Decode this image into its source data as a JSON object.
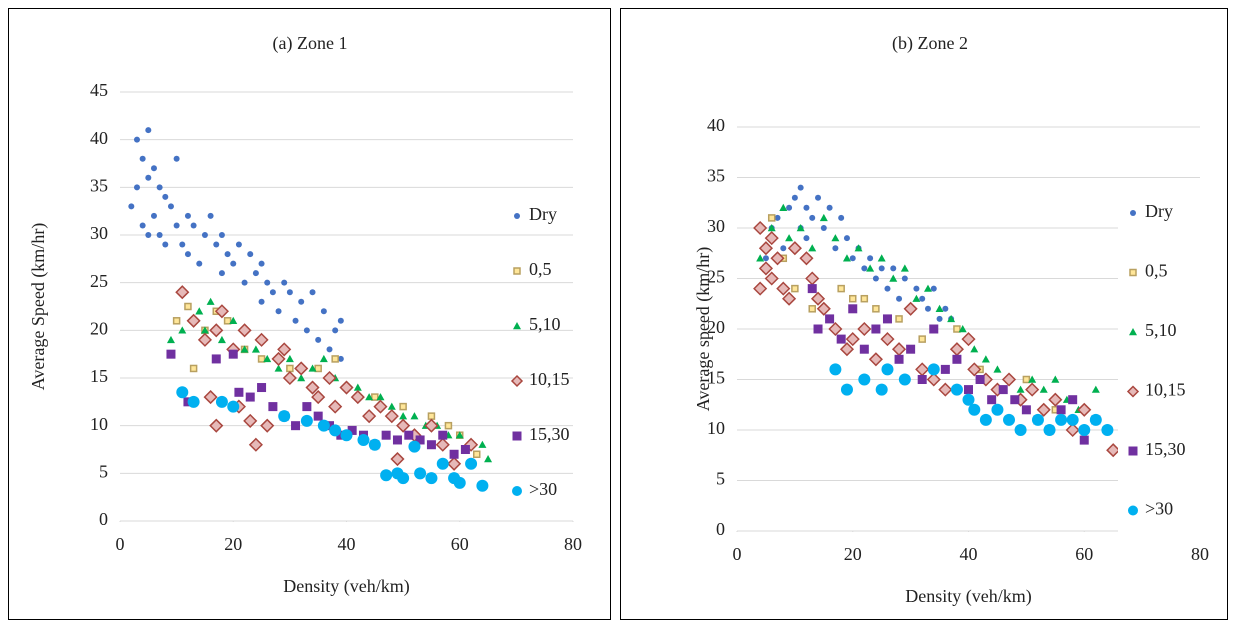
{
  "chart_data": [
    {
      "type": "scatter",
      "title": "(a) Zone 1",
      "xlabel": "Density (veh/km)",
      "ylabel": "Average Speed (km/hr)",
      "xlim": [
        0,
        80
      ],
      "xticks": [
        0,
        20,
        40,
        60,
        80
      ],
      "ylim": [
        0,
        45
      ],
      "yticks": [
        0,
        5,
        10,
        15,
        20,
        25,
        30,
        35,
        40,
        45
      ],
      "grid": true,
      "legend": "right",
      "series": [
        {
          "name": "Dry",
          "color": "#4472c4",
          "marker": "circle",
          "size": 3,
          "x": [
            2,
            3,
            3,
            4,
            4,
            5,
            5,
            5,
            6,
            6,
            7,
            7,
            8,
            8,
            9,
            10,
            10,
            11,
            12,
            12,
            13,
            14,
            15,
            16,
            17,
            18,
            18,
            19,
            20,
            21,
            22,
            23,
            24,
            25,
            25,
            26,
            27,
            28,
            29,
            30,
            31,
            32,
            33,
            34,
            35,
            36,
            37,
            38,
            39,
            39
          ],
          "y": [
            33,
            35,
            40,
            38,
            31,
            41,
            36,
            30,
            37,
            32,
            35,
            30,
            34,
            29,
            33,
            38,
            31,
            29,
            32,
            28,
            31,
            27,
            30,
            32,
            29,
            30,
            26,
            28,
            27,
            29,
            25,
            28,
            26,
            27,
            23,
            25,
            24,
            22,
            25,
            24,
            21,
            23,
            20,
            24,
            19,
            22,
            18,
            20,
            17,
            21
          ]
        },
        {
          "name": "0,5",
          "color": "#ffe699",
          "edgecolor": "#b8a060",
          "marker": "square",
          "size": 3,
          "x": [
            10,
            12,
            13,
            15,
            17,
            19,
            22,
            25,
            30,
            35,
            38,
            45,
            50,
            55,
            58,
            60,
            63
          ],
          "y": [
            21,
            22.5,
            16,
            20,
            22,
            21,
            18,
            17,
            16,
            16,
            17,
            13,
            12,
            11,
            10,
            9,
            7
          ]
        },
        {
          "name": "5,10",
          "color": "#00b050",
          "marker": "triangle",
          "size": 4,
          "x": [
            9,
            11,
            13,
            14,
            15,
            16,
            18,
            20,
            22,
            24,
            26,
            28,
            30,
            32,
            34,
            36,
            38,
            40,
            42,
            44,
            46,
            48,
            50,
            52,
            54,
            56,
            58,
            60,
            62,
            64,
            65
          ],
          "y": [
            19,
            20,
            21,
            22,
            20,
            23,
            19,
            21,
            18,
            18,
            17,
            16,
            17,
            15,
            16,
            17,
            15,
            14,
            14,
            13,
            13,
            12,
            11,
            11,
            10,
            10,
            9,
            9,
            8,
            8,
            6.5
          ]
        },
        {
          "name": "10,15",
          "color": "#e6b9b8",
          "edgecolor": "#a9473f",
          "marker": "diamond",
          "size": 6,
          "x": [
            11,
            13,
            15,
            16,
            17,
            17,
            18,
            20,
            21,
            22,
            23,
            24,
            25,
            26,
            28,
            29,
            30,
            32,
            34,
            35,
            37,
            38,
            40,
            42,
            44,
            46,
            48,
            49,
            50,
            52,
            55,
            57,
            59,
            62
          ],
          "y": [
            24,
            21,
            19,
            13,
            20,
            10,
            22,
            18,
            12,
            20,
            10.5,
            8,
            19,
            10,
            17,
            18,
            15,
            16,
            14,
            13,
            15,
            12,
            14,
            13,
            11,
            12,
            11,
            6.5,
            10,
            9,
            10,
            8,
            6,
            8
          ]
        },
        {
          "name": "15,30",
          "color": "#7030a0",
          "marker": "square",
          "size": 4.5,
          "x": [
            9,
            12,
            17,
            20,
            21,
            23,
            25,
            27,
            29,
            31,
            33,
            35,
            37,
            39,
            41,
            43,
            45,
            47,
            49,
            51,
            53,
            55,
            57,
            59,
            61
          ],
          "y": [
            17.5,
            12.5,
            17,
            17.5,
            13.5,
            13,
            14,
            12,
            11,
            10,
            12,
            11,
            10,
            9,
            9.5,
            9,
            8,
            9,
            8.5,
            9,
            8.5,
            8,
            9,
            7,
            7.5
          ]
        },
        {
          "name": ">30",
          "color": "#00b0f0",
          "marker": "circle",
          "size": 6,
          "x": [
            11,
            13,
            18,
            20,
            29,
            33,
            36,
            38,
            40,
            43,
            45,
            47,
            49,
            50,
            52,
            53,
            55,
            57,
            59,
            60,
            62,
            64
          ],
          "y": [
            13.5,
            12.5,
            12.5,
            12,
            11,
            10.5,
            10,
            9.5,
            9,
            8.5,
            8,
            4.8,
            5,
            4.5,
            7.8,
            5,
            4.5,
            6,
            4.5,
            4,
            6,
            3.7
          ]
        }
      ]
    },
    {
      "type": "scatter",
      "title": "(b) Zone 2",
      "xlabel": "Density (veh/km)",
      "ylabel": "Average speed (km/hr)",
      "xlim": [
        0,
        80
      ],
      "xticks": [
        0,
        20,
        40,
        60,
        80
      ],
      "ylim": [
        0,
        40
      ],
      "yticks": [
        0,
        5,
        10,
        15,
        20,
        25,
        30,
        35,
        40
      ],
      "grid": true,
      "legend": "right",
      "series": [
        {
          "name": "Dry",
          "color": "#4472c4",
          "marker": "circle",
          "size": 3,
          "x": [
            5,
            6,
            7,
            8,
            9,
            10,
            11,
            11,
            12,
            12,
            13,
            14,
            15,
            16,
            17,
            18,
            19,
            20,
            21,
            22,
            23,
            24,
            25,
            26,
            27,
            28,
            29,
            30,
            31,
            32,
            33,
            34,
            35,
            36,
            37,
            38
          ],
          "y": [
            27,
            30,
            31,
            28,
            32,
            33,
            34,
            30,
            32,
            29,
            31,
            33,
            30,
            32,
            28,
            31,
            29,
            27,
            28,
            26,
            27,
            25,
            26,
            24,
            26,
            23,
            25,
            22,
            24,
            23,
            22,
            24,
            21,
            22,
            21,
            20
          ]
        },
        {
          "name": "0,5",
          "color": "#ffe699",
          "edgecolor": "#b8a060",
          "marker": "square",
          "size": 3,
          "x": [
            5,
            6,
            8,
            10,
            13,
            18,
            20,
            22,
            24,
            28,
            32,
            38,
            42,
            46,
            50,
            55
          ],
          "y": [
            26,
            31,
            27,
            24,
            22,
            24,
            23,
            23,
            22,
            21,
            19,
            20,
            16,
            14,
            15,
            12
          ]
        },
        {
          "name": "5,10",
          "color": "#00b050",
          "marker": "triangle",
          "size": 4,
          "x": [
            4,
            6,
            8,
            9,
            11,
            13,
            15,
            17,
            19,
            21,
            23,
            25,
            27,
            29,
            31,
            33,
            35,
            37,
            39,
            41,
            43,
            45,
            47,
            49,
            51,
            53,
            55,
            57,
            59,
            62
          ],
          "y": [
            27,
            30,
            32,
            29,
            30,
            28,
            31,
            29,
            27,
            28,
            26,
            27,
            25,
            26,
            23,
            24,
            22,
            21,
            20,
            18,
            17,
            16,
            15,
            14,
            15,
            14,
            15,
            13,
            12,
            14
          ]
        },
        {
          "name": "10,15",
          "color": "#e6b9b8",
          "edgecolor": "#a9473f",
          "marker": "diamond",
          "size": 6,
          "x": [
            4,
            4,
            5,
            5,
            6,
            6,
            7,
            8,
            9,
            10,
            12,
            13,
            14,
            15,
            17,
            19,
            20,
            22,
            24,
            26,
            28,
            30,
            32,
            34,
            36,
            38,
            40,
            41,
            43,
            45,
            47,
            49,
            51,
            53,
            55,
            58,
            60,
            65
          ],
          "y": [
            24,
            30,
            26,
            28,
            25,
            29,
            27,
            24,
            23,
            28,
            27,
            25,
            23,
            22,
            20,
            18,
            19,
            20,
            17,
            19,
            18,
            22,
            16,
            15,
            14,
            18,
            19,
            16,
            15,
            14,
            15,
            13,
            14,
            12,
            13,
            10,
            12,
            8
          ]
        },
        {
          "name": "15,30",
          "color": "#7030a0",
          "marker": "square",
          "size": 4.5,
          "x": [
            13,
            14,
            16,
            18,
            20,
            22,
            24,
            26,
            28,
            30,
            32,
            34,
            36,
            38,
            40,
            42,
            44,
            46,
            48,
            50,
            52,
            54,
            56,
            58,
            60,
            62
          ],
          "y": [
            24,
            20,
            21,
            19,
            22,
            18,
            20,
            21,
            17,
            18,
            15,
            20,
            16,
            17,
            14,
            15,
            13,
            14,
            13,
            12,
            11,
            10,
            12,
            13,
            9,
            11
          ]
        },
        {
          "name": ">30",
          "color": "#00b0f0",
          "marker": "circle",
          "size": 6,
          "x": [
            17,
            19,
            22,
            25,
            26,
            29,
            34,
            38,
            40,
            41,
            43,
            45,
            47,
            49,
            52,
            54,
            56,
            58,
            60,
            62,
            64
          ],
          "y": [
            16,
            14,
            15,
            14,
            16,
            15,
            16,
            14,
            13,
            12,
            11,
            12,
            11,
            10,
            11,
            10,
            11,
            11,
            10,
            11,
            10
          ]
        }
      ]
    }
  ]
}
